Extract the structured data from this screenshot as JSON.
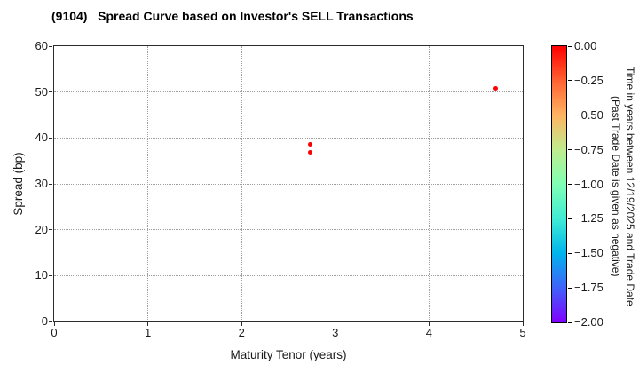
{
  "chart_data": {
    "type": "scatter",
    "title": "(9104)   Spread Curve based on Investor's SELL Transactions",
    "xlabel": "Maturity Tenor (years)",
    "ylabel": "Spread (bp)",
    "xlim": [
      0,
      5
    ],
    "ylim": [
      0,
      60
    ],
    "xticks": [
      0,
      1,
      2,
      3,
      4,
      5
    ],
    "yticks": [
      0,
      10,
      20,
      30,
      40,
      50,
      60
    ],
    "grid": true,
    "grid_style": "dotted",
    "legend": "none",
    "points": [
      {
        "x": 2.73,
        "y": 38.7,
        "c": 0.0
      },
      {
        "x": 2.73,
        "y": 36.9,
        "c": 0.0
      },
      {
        "x": 4.71,
        "y": 50.8,
        "c": 0.0
      }
    ],
    "point_color": "#ff0000",
    "colorbar": {
      "position": "right",
      "range_top": 0.0,
      "range_bottom": -2.0,
      "tick_labels": [
        "0.00",
        "−0.25",
        "−0.50",
        "−0.75",
        "−1.00",
        "−1.25",
        "−1.50",
        "−1.75",
        "−2.00"
      ],
      "label_line1": "Time in years between 12/19/2025 and Trade Date",
      "label_line2": "(Past Trade Date is given as negative)",
      "colormap": "rainbow",
      "gradient_stops": [
        "#ff0000",
        "#ff6232",
        "#ffb462",
        "#bfec8e",
        "#80ffb4",
        "#40ecd4",
        "#00b4ec",
        "#4062fa",
        "#8000ff"
      ]
    }
  },
  "colors": {
    "text": "#1a1a1a",
    "spine": "#2b2b2b",
    "grid": "#9e9e9e",
    "background": "#ffffff"
  }
}
